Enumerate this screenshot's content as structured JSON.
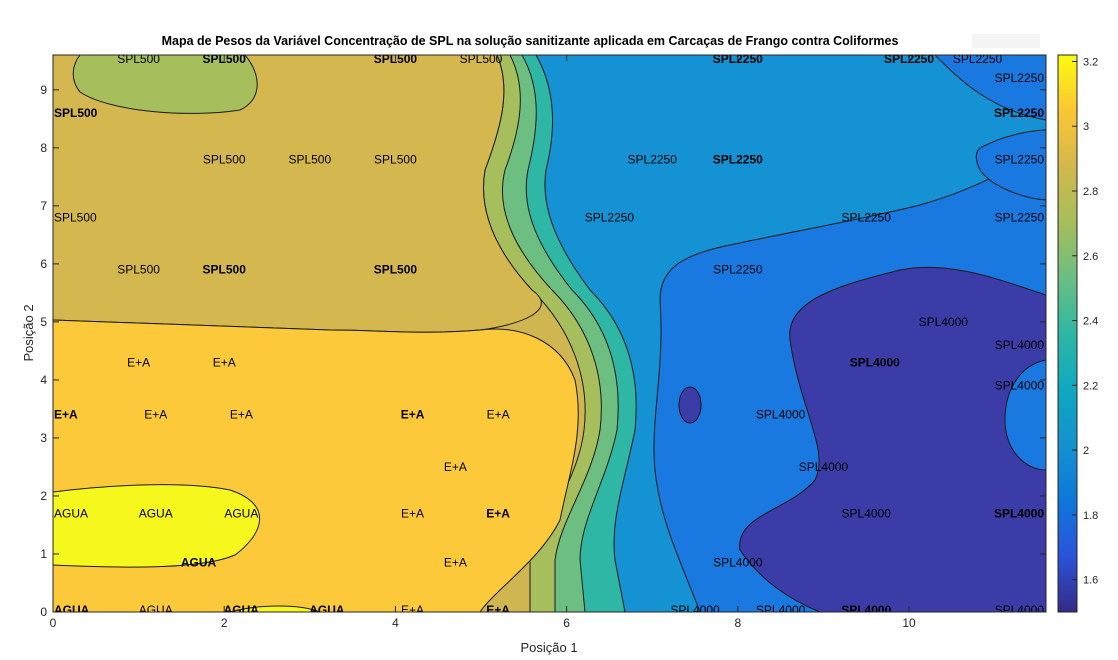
{
  "chart_data": {
    "type": "heatmap",
    "subtype": "filled-contour",
    "title": "Mapa de Pesos da Variável Concentração de SPL na solução sanitizante aplicada em Carcaças de Frango contra Coliformes",
    "xlabel": "Posição 1",
    "ylabel": "Posição 2",
    "xlim": [
      0,
      11.6
    ],
    "ylim": [
      0,
      9.6
    ],
    "x_ticks": [
      "0",
      "2",
      "4",
      "6",
      "8",
      "10"
    ],
    "x_tick_values": [
      0,
      2,
      4,
      6,
      8,
      10
    ],
    "y_ticks": [
      "0",
      "1",
      "2",
      "3",
      "4",
      "5",
      "6",
      "7",
      "8",
      "9"
    ],
    "y_tick_values": [
      0,
      1,
      2,
      3,
      4,
      5,
      6,
      7,
      8,
      9
    ],
    "colorbar": {
      "range": [
        1.5,
        3.22
      ],
      "ticks": [
        "1.6",
        "1.8",
        "2",
        "2.2",
        "2.4",
        "2.6",
        "2.8",
        "3",
        "3.2"
      ],
      "tick_values": [
        1.6,
        1.8,
        2.0,
        2.2,
        2.4,
        2.6,
        2.8,
        3.0,
        3.2
      ],
      "colormap": "parula",
      "stops": [
        "#352a87",
        "#2b53d9",
        "#0f77db",
        "#1392cf",
        "#0fa8bf",
        "#2eb7a4",
        "#6cbe81",
        "#a6be5b",
        "#d3b84c",
        "#fbc634",
        "#f9fb0e"
      ]
    },
    "levels": [
      1.6,
      1.8,
      2.0,
      2.2,
      2.4,
      2.6,
      2.8,
      3.0,
      3.2
    ],
    "regions": [
      {
        "label": "SPL500",
        "approx_value": 2.7
      },
      {
        "label": "E+A",
        "approx_value": 3.05
      },
      {
        "label": "AGUA",
        "approx_value": 3.2
      },
      {
        "label": "SPL2250",
        "approx_value": 1.95
      },
      {
        "label": "SPL4000",
        "approx_value": 1.62
      }
    ],
    "annotations": [
      {
        "text": "SPL500",
        "x": 1.0,
        "y": 9.6,
        "bold": false
      },
      {
        "text": "SPL500",
        "x": 2.0,
        "y": 9.6,
        "bold": true
      },
      {
        "text": "SPL500",
        "x": 4.0,
        "y": 9.6,
        "bold": true
      },
      {
        "text": "SPL500",
        "x": 5.0,
        "y": 9.6,
        "bold": false
      },
      {
        "text": "SPL500",
        "x": 0.0,
        "y": 8.6,
        "bold": true
      },
      {
        "text": "SPL500",
        "x": 2.0,
        "y": 7.8,
        "bold": false
      },
      {
        "text": "SPL500",
        "x": 3.0,
        "y": 7.8,
        "bold": false
      },
      {
        "text": "SPL500",
        "x": 4.0,
        "y": 7.8,
        "bold": false
      },
      {
        "text": "SPL500",
        "x": 0.0,
        "y": 6.8,
        "bold": false
      },
      {
        "text": "SPL500",
        "x": 1.0,
        "y": 5.9,
        "bold": false
      },
      {
        "text": "SPL500",
        "x": 2.0,
        "y": 5.9,
        "bold": true
      },
      {
        "text": "SPL500",
        "x": 4.0,
        "y": 5.9,
        "bold": true
      },
      {
        "text": "E+A",
        "x": 1.0,
        "y": 4.3,
        "bold": false
      },
      {
        "text": "E+A",
        "x": 2.0,
        "y": 4.3,
        "bold": false
      },
      {
        "text": "E+A",
        "x": 0.0,
        "y": 3.4,
        "bold": true
      },
      {
        "text": "E+A",
        "x": 1.2,
        "y": 3.4,
        "bold": false
      },
      {
        "text": "E+A",
        "x": 2.2,
        "y": 3.4,
        "bold": false
      },
      {
        "text": "E+A",
        "x": 4.2,
        "y": 3.4,
        "bold": true
      },
      {
        "text": "E+A",
        "x": 5.2,
        "y": 3.4,
        "bold": false
      },
      {
        "text": "E+A",
        "x": 4.7,
        "y": 2.5,
        "bold": false
      },
      {
        "text": "AGUA",
        "x": 0.0,
        "y": 1.7,
        "bold": false
      },
      {
        "text": "AGUA",
        "x": 1.2,
        "y": 1.7,
        "bold": false
      },
      {
        "text": "AGUA",
        "x": 2.2,
        "y": 1.7,
        "bold": false
      },
      {
        "text": "E+A",
        "x": 4.2,
        "y": 1.7,
        "bold": false
      },
      {
        "text": "E+A",
        "x": 5.2,
        "y": 1.7,
        "bold": true
      },
      {
        "text": "AGUA",
        "x": 1.7,
        "y": 0.85,
        "bold": true
      },
      {
        "text": "E+A",
        "x": 4.7,
        "y": 0.85,
        "bold": false
      },
      {
        "text": "AGUA",
        "x": 0.0,
        "y": 0.0,
        "bold": true
      },
      {
        "text": "AGUA",
        "x": 1.2,
        "y": 0.0,
        "bold": false
      },
      {
        "text": "AGUA",
        "x": 2.2,
        "y": 0.0,
        "bold": true
      },
      {
        "text": "AGUA",
        "x": 3.2,
        "y": 0.0,
        "bold": true
      },
      {
        "text": "E+A",
        "x": 4.2,
        "y": 0.0,
        "bold": false
      },
      {
        "text": "E+A",
        "x": 5.2,
        "y": 0.0,
        "bold": true
      },
      {
        "text": "SPL2250",
        "x": 8.0,
        "y": 9.6,
        "bold": true
      },
      {
        "text": "SPL2250",
        "x": 10.0,
        "y": 9.6,
        "bold": true
      },
      {
        "text": "SPL2250",
        "x": 10.8,
        "y": 9.6,
        "bold": false
      },
      {
        "text": "SPL2250",
        "x": 11.4,
        "y": 9.2,
        "bold": false
      },
      {
        "text": "SPL2250",
        "x": 11.4,
        "y": 8.6,
        "bold": true
      },
      {
        "text": "SPL2250",
        "x": 7.0,
        "y": 7.8,
        "bold": false
      },
      {
        "text": "SPL2250",
        "x": 8.0,
        "y": 7.8,
        "bold": true
      },
      {
        "text": "SPL2250",
        "x": 11.4,
        "y": 7.8,
        "bold": false
      },
      {
        "text": "SPL2250",
        "x": 6.5,
        "y": 6.8,
        "bold": false
      },
      {
        "text": "SPL2250",
        "x": 9.5,
        "y": 6.8,
        "bold": false
      },
      {
        "text": "SPL2250",
        "x": 11.4,
        "y": 6.8,
        "bold": false
      },
      {
        "text": "SPL2250",
        "x": 8.0,
        "y": 5.9,
        "bold": false
      },
      {
        "text": "SPL4000",
        "x": 10.4,
        "y": 5.0,
        "bold": false
      },
      {
        "text": "SPL4000",
        "x": 11.4,
        "y": 4.6,
        "bold": false
      },
      {
        "text": "SPL4000",
        "x": 9.6,
        "y": 4.3,
        "bold": true
      },
      {
        "text": "SPL4000",
        "x": 11.4,
        "y": 3.9,
        "bold": false
      },
      {
        "text": "SPL4000",
        "x": 8.5,
        "y": 3.4,
        "bold": false
      },
      {
        "text": "SPL4000",
        "x": 9.0,
        "y": 2.5,
        "bold": false
      },
      {
        "text": "SPL4000",
        "x": 9.5,
        "y": 1.7,
        "bold": false
      },
      {
        "text": "SPL4000",
        "x": 11.4,
        "y": 1.7,
        "bold": true
      },
      {
        "text": "SPL4000",
        "x": 8.0,
        "y": 0.85,
        "bold": false
      },
      {
        "text": "SPL4000",
        "x": 7.5,
        "y": 0.0,
        "bold": false
      },
      {
        "text": "SPL4000",
        "x": 8.5,
        "y": 0.0,
        "bold": false
      },
      {
        "text": "SPL4000",
        "x": 9.5,
        "y": 0.0,
        "bold": true
      },
      {
        "text": "SPL4000",
        "x": 11.4,
        "y": 0.0,
        "bold": false
      }
    ],
    "grid": false,
    "legend": "colorbar-right"
  }
}
